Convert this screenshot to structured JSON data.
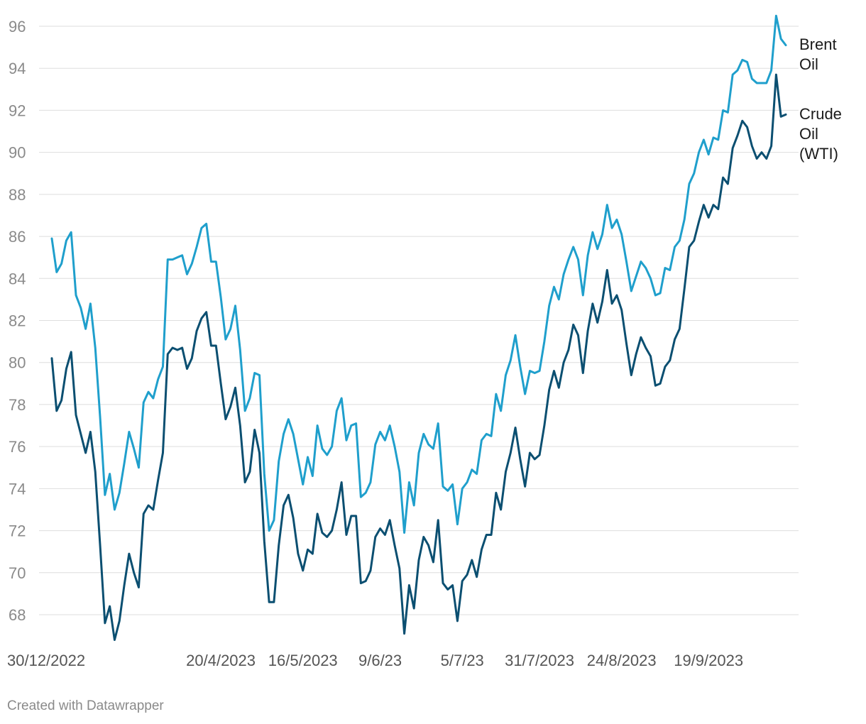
{
  "chart_data": {
    "type": "line",
    "title": "",
    "xlabel": "",
    "ylabel": "",
    "ylim": [
      66.5,
      97
    ],
    "y_ticks": [
      68,
      70,
      72,
      74,
      76,
      78,
      80,
      82,
      84,
      86,
      88,
      90,
      92,
      94,
      96
    ],
    "x_tick_labels": [
      {
        "label": "30/12/2022",
        "index": 0
      },
      {
        "label": "20/4/2023",
        "index": 35
      },
      {
        "label": "16/5/2023",
        "index": 52
      },
      {
        "label": "9/6/23",
        "index": 68
      },
      {
        "label": "5/7/23",
        "index": 85
      },
      {
        "label": "31/7/2023",
        "index": 101
      },
      {
        "label": "24/8/2023",
        "index": 118
      },
      {
        "label": "19/9/2023",
        "index": 136
      }
    ],
    "grid": true,
    "legend": "inline-right",
    "colors": {
      "brent": "#1f9fcc",
      "wti": "#0b4f71",
      "grid": "#dedede"
    },
    "series": [
      {
        "name": "Brent Oil",
        "label_lines": [
          "Brent",
          "Oil"
        ],
        "color": "#1f9fcc",
        "values": [
          85.9,
          84.3,
          84.7,
          85.8,
          86.2,
          83.2,
          82.6,
          81.6,
          82.8,
          80.7,
          77.4,
          73.7,
          74.7,
          73.0,
          73.8,
          75.2,
          76.7,
          75.9,
          75.0,
          78.1,
          78.6,
          78.3,
          79.2,
          79.8,
          84.9,
          84.9,
          85.0,
          85.1,
          84.2,
          84.7,
          85.5,
          86.4,
          86.6,
          84.8,
          84.8,
          83.1,
          81.1,
          81.6,
          82.7,
          80.6,
          77.7,
          78.3,
          79.5,
          79.4,
          74.7,
          72.0,
          72.5,
          75.3,
          76.6,
          77.3,
          76.6,
          75.4,
          74.2,
          75.5,
          74.6,
          77.0,
          75.9,
          75.6,
          76.0,
          77.7,
          78.3,
          76.3,
          77.0,
          77.1,
          73.6,
          73.8,
          74.3,
          76.1,
          76.7,
          76.3,
          77.0,
          76.0,
          74.8,
          71.9,
          74.3,
          73.2,
          75.7,
          76.6,
          76.1,
          75.9,
          77.1,
          74.1,
          73.9,
          74.2,
          72.3,
          74.0,
          74.3,
          74.9,
          74.7,
          76.3,
          76.6,
          76.5,
          78.5,
          77.7,
          79.4,
          80.1,
          81.3,
          79.8,
          78.5,
          79.6,
          79.5,
          79.6,
          81.0,
          82.7,
          83.6,
          83.0,
          84.2,
          84.9,
          85.5,
          84.9,
          83.2,
          85.1,
          86.2,
          85.4,
          86.1,
          87.5,
          86.4,
          86.8,
          86.1,
          84.8,
          83.4,
          84.1,
          84.8,
          84.5,
          84.0,
          83.2,
          83.3,
          84.5,
          84.4,
          85.5,
          85.8,
          86.8,
          88.5,
          89.0,
          90.0,
          90.6,
          89.9,
          90.7,
          90.6,
          92.0,
          91.9,
          93.7,
          93.9,
          94.4,
          94.3,
          93.5,
          93.3,
          93.3,
          93.3,
          93.9,
          96.5,
          95.4,
          95.1
        ]
      },
      {
        "name": "Crude Oil (WTI)",
        "label_lines": [
          "Crude",
          "Oil",
          "(WTI)"
        ],
        "color": "#0b4f71",
        "values": [
          80.2,
          77.7,
          78.2,
          79.7,
          80.5,
          77.5,
          76.6,
          75.7,
          76.7,
          74.8,
          71.3,
          67.6,
          68.4,
          66.8,
          67.7,
          69.4,
          70.9,
          70.0,
          69.3,
          72.8,
          73.2,
          73.0,
          74.4,
          75.7,
          80.4,
          80.7,
          80.6,
          80.7,
          79.7,
          80.2,
          81.5,
          82.1,
          82.4,
          80.8,
          80.8,
          79.0,
          77.3,
          77.9,
          78.8,
          77.0,
          74.3,
          74.8,
          76.8,
          75.7,
          71.5,
          68.6,
          68.6,
          71.3,
          73.2,
          73.7,
          72.6,
          70.9,
          70.1,
          71.1,
          70.9,
          72.8,
          71.9,
          71.7,
          72.0,
          73.0,
          74.3,
          71.8,
          72.7,
          72.7,
          69.5,
          69.6,
          70.1,
          71.7,
          72.1,
          71.8,
          72.5,
          71.3,
          70.2,
          67.1,
          69.4,
          68.3,
          70.6,
          71.7,
          71.3,
          70.5,
          72.5,
          69.5,
          69.2,
          69.4,
          67.7,
          69.6,
          69.9,
          70.6,
          69.8,
          71.1,
          71.8,
          71.8,
          73.8,
          73.0,
          74.8,
          75.7,
          76.9,
          75.4,
          74.1,
          75.7,
          75.4,
          75.6,
          77.0,
          78.7,
          79.6,
          78.8,
          80.0,
          80.6,
          81.8,
          81.3,
          79.5,
          81.5,
          82.8,
          81.9,
          82.9,
          84.4,
          82.8,
          83.2,
          82.5,
          80.9,
          79.4,
          80.4,
          81.2,
          80.7,
          80.3,
          78.9,
          79.0,
          79.8,
          80.1,
          81.1,
          81.6,
          83.5,
          85.5,
          85.8,
          86.7,
          87.5,
          86.9,
          87.5,
          87.3,
          88.8,
          88.5,
          90.2,
          90.8,
          91.5,
          91.2,
          90.3,
          89.7,
          90.0,
          89.7,
          90.3,
          93.7,
          91.7,
          91.8
        ]
      }
    ]
  },
  "footer": {
    "credit": "Created with Datawrapper"
  }
}
